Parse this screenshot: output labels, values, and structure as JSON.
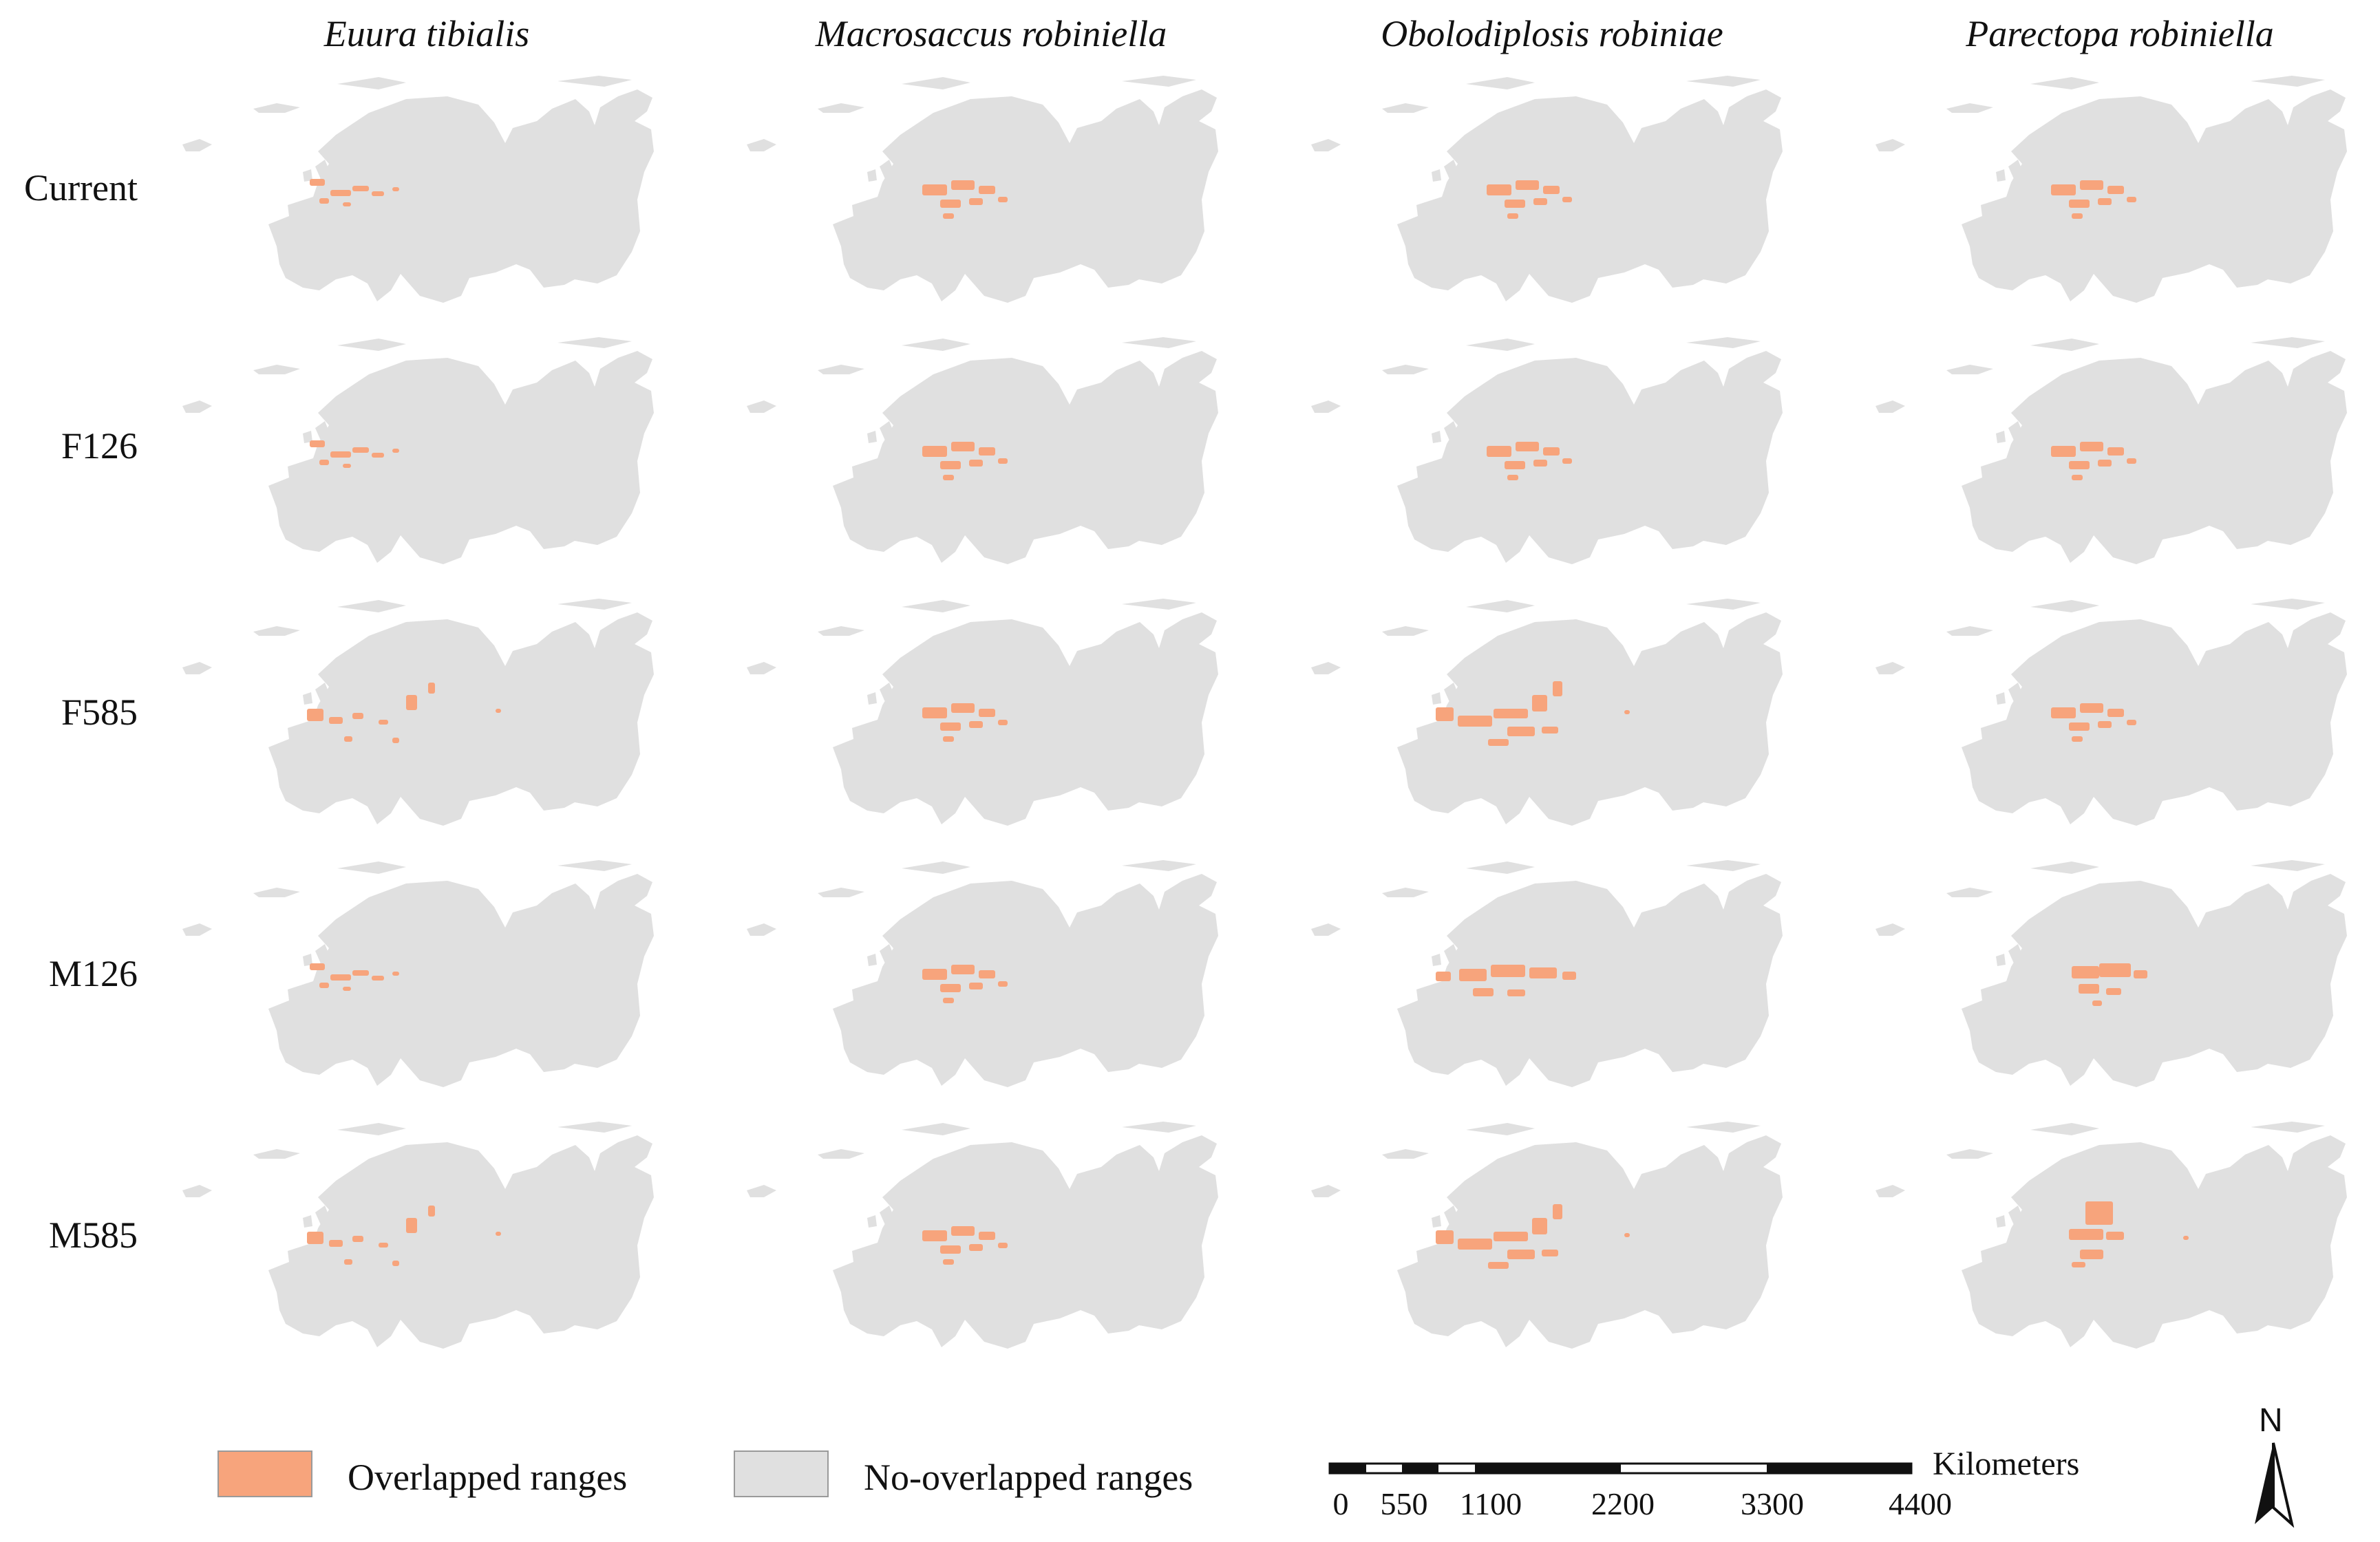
{
  "figure": {
    "columns": [
      "Euura tibialis",
      "Macrosaccus robiniella",
      "Obolodiplosis robiniae",
      "Parectopa robiniella"
    ],
    "rows": [
      "Current",
      "F126",
      "F585",
      "M126",
      "M585"
    ]
  },
  "legend": {
    "overlapped_label": "Overlapped ranges",
    "no_overlapped_label": "No-overlapped ranges",
    "overlapped_color": "#f7a47c",
    "no_overlapped_color": "#e0e0e0"
  },
  "scale_bar": {
    "unit": "Kilometers",
    "ticks": [
      "0",
      "550",
      "1100",
      "2200",
      "3300",
      "4400"
    ],
    "tick_values_km": [
      0,
      550,
      1100,
      2200,
      3300,
      4400
    ]
  },
  "north_arrow": {
    "letter": "N"
  },
  "overlap_regions": {
    "Euura tibialis": {
      "Current": "west-europe",
      "F126": "west-europe",
      "F585": "west-europe-scandinavia",
      "M126": "west-europe",
      "M585": "west-europe-scandinavia"
    },
    "Macrosaccus robiniella": {
      "Current": "central-europe",
      "F126": "central-europe",
      "F585": "central-europe",
      "M126": "central-europe",
      "M585": "central-europe"
    },
    "Obolodiplosis robiniae": {
      "Current": "central-europe",
      "F126": "central-europe",
      "F585": "central-west-scandinavia",
      "M126": "central-west-europe",
      "M585": "central-west-scandinavia"
    },
    "Parectopa robiniella": {
      "Current": "central-europe",
      "F126": "central-europe",
      "F585": "central-europe",
      "M126": "central-east-europe",
      "M585": "central-europe-scandinavia"
    }
  }
}
